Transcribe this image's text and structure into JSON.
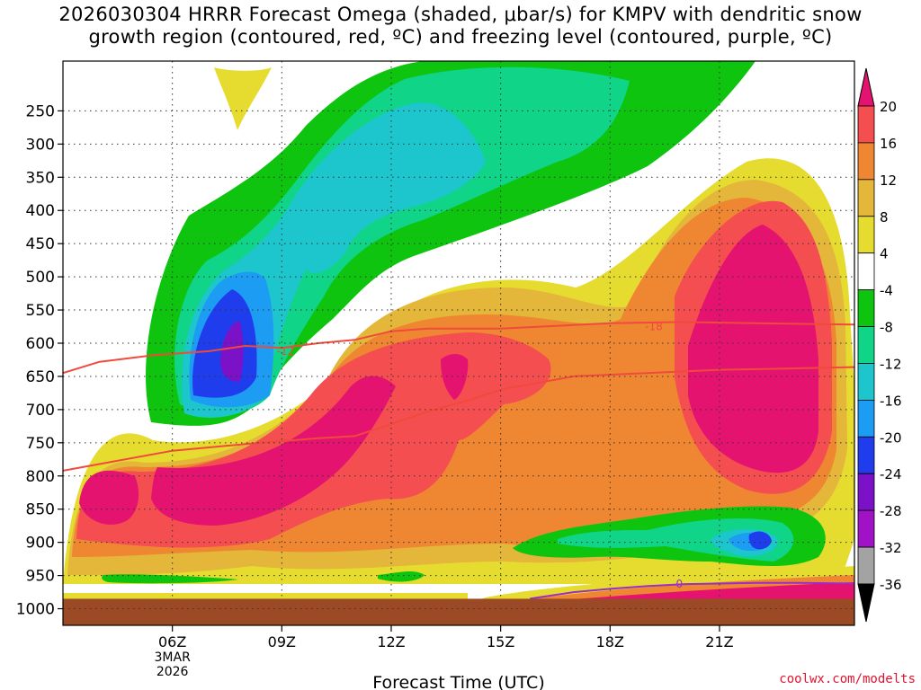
{
  "page": {
    "title_line1": "2026030304 HRRR Forecast Omega (shaded, μbar/s) for KMPV with dendritic snow",
    "title_line2": "growth region (contoured, red, ºC) and freezing level (contoured, purple, ºC)",
    "credit": "coolwx.com/modelts"
  },
  "chart_data": {
    "type": "heatmap",
    "title": "2026030304 HRRR Forecast Omega (shaded, μbar/s) for KMPV with dendritic snow growth region (contoured, red, ºC) and freezing level (contoured, purple, ºC)",
    "xlabel": "Forecast Time (UTC)",
    "ylabel": "",
    "x_range_hours_utc": [
      3,
      24.7
    ],
    "y_range_hPa": [
      1025,
      175
    ],
    "x_ticks": [
      {
        "hour": 6,
        "label": "06Z",
        "sub1": "3MAR",
        "sub2": "2026"
      },
      {
        "hour": 9,
        "label": "09Z"
      },
      {
        "hour": 12,
        "label": "12Z"
      },
      {
        "hour": 15,
        "label": "15Z"
      },
      {
        "hour": 18,
        "label": "18Z"
      },
      {
        "hour": 21,
        "label": "21Z"
      }
    ],
    "y_ticks": [
      250,
      300,
      350,
      400,
      450,
      500,
      550,
      600,
      650,
      700,
      750,
      800,
      850,
      900,
      950,
      1000
    ],
    "grid": true,
    "colorbar": {
      "levels": [
        20,
        16,
        12,
        8,
        4,
        -4,
        -8,
        -12,
        -16,
        -20,
        -24,
        -28,
        -32,
        -36
      ],
      "colors": [
        "#e4136f",
        "#f54e50",
        "#ef8732",
        "#e4b63a",
        "#e6dc30",
        "#ffffff",
        "#0ec40e",
        "#10d488",
        "#1cc6cc",
        "#1c9cf2",
        "#1f3ced",
        "#7b12c8",
        "#a112c6",
        "#a3a3a3"
      ],
      "top_color": "#e4136f",
      "bottom_color": "#000000"
    },
    "contours": [
      {
        "name": "dendritic-upper",
        "label": "-18",
        "color": "#f04a3c",
        "points": [
          [
            3,
            645
          ],
          [
            4,
            628
          ],
          [
            5.5,
            618
          ],
          [
            7,
            612
          ],
          [
            8,
            604
          ],
          [
            9,
            607
          ],
          [
            10,
            600
          ],
          [
            11,
            595
          ],
          [
            12,
            582
          ],
          [
            13,
            578
          ],
          [
            15,
            578
          ],
          [
            18,
            570
          ],
          [
            20,
            568
          ],
          [
            22,
            570
          ],
          [
            24.7,
            572
          ]
        ]
      },
      {
        "name": "dendritic-lower",
        "label": "-12",
        "color": "#f04a3c",
        "points": [
          [
            3,
            792
          ],
          [
            4,
            782
          ],
          [
            6,
            762
          ],
          [
            8,
            752
          ],
          [
            10,
            743
          ],
          [
            11,
            740
          ],
          [
            12,
            722
          ],
          [
            13,
            703
          ],
          [
            14,
            688
          ],
          [
            15,
            670
          ],
          [
            17,
            650
          ],
          [
            19,
            645
          ],
          [
            21,
            640
          ],
          [
            23,
            638
          ],
          [
            24.7,
            636
          ]
        ]
      },
      {
        "name": "freezing-level",
        "label": "0",
        "color": "#9a2ec8",
        "points": [
          [
            15.8,
            985
          ],
          [
            17,
            975
          ],
          [
            18,
            970
          ],
          [
            19,
            966
          ],
          [
            20,
            963
          ],
          [
            21,
            962
          ],
          [
            22,
            961
          ],
          [
            23,
            961
          ],
          [
            24.7,
            962
          ]
        ]
      }
    ],
    "contour_labels": [
      {
        "text": "-18",
        "hour": 19.2,
        "hPa": 575,
        "color": "#f04a3c"
      },
      {
        "text": "-12",
        "hour": 9.1,
        "hPa": 612,
        "color": "#f04a3c"
      },
      {
        "text": "0",
        "hour": 19.9,
        "hPa": 963,
        "color": "#9a2ec8"
      }
    ],
    "ground_level_hPa": 985,
    "ground_color": "#9c4a26"
  }
}
